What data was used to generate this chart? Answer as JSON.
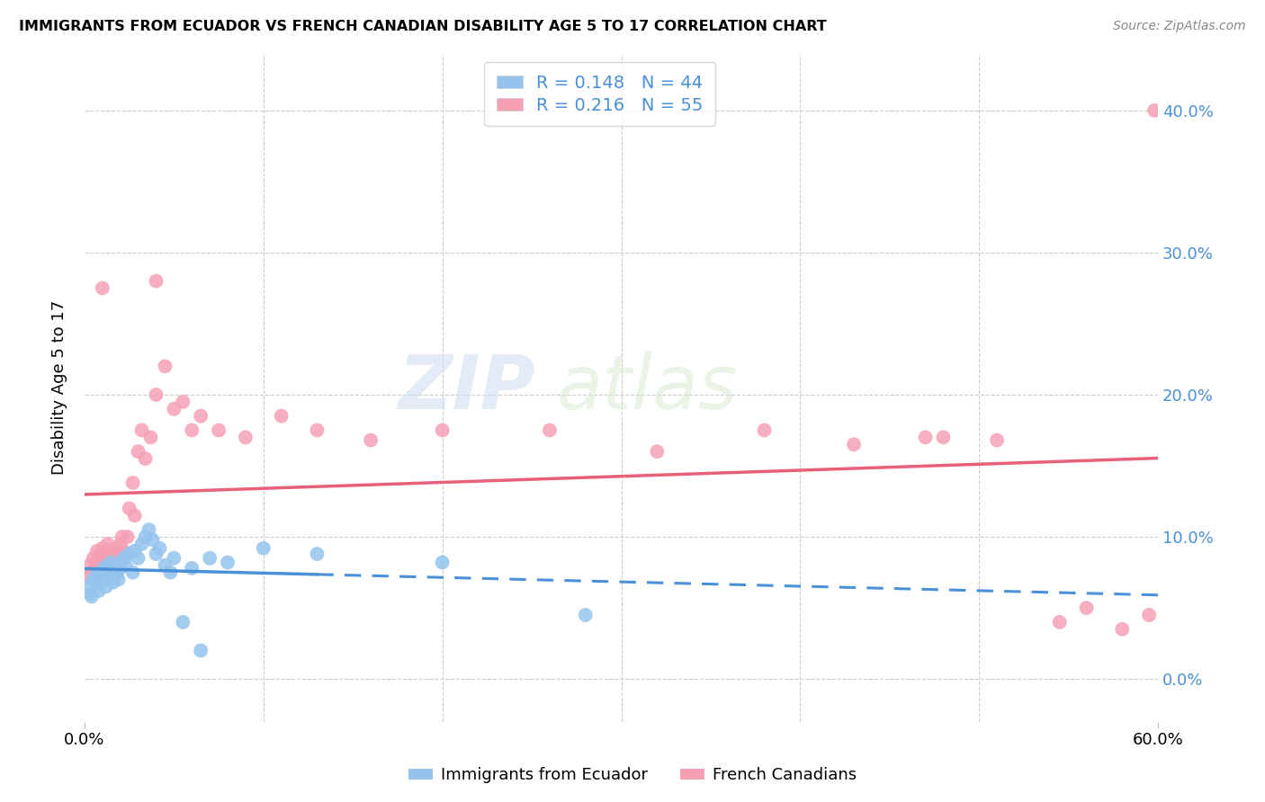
{
  "title": "IMMIGRANTS FROM ECUADOR VS FRENCH CANADIAN DISABILITY AGE 5 TO 17 CORRELATION CHART",
  "source": "Source: ZipAtlas.com",
  "ylabel": "Disability Age 5 to 17",
  "xlim": [
    0.0,
    0.6
  ],
  "ylim": [
    -0.03,
    0.44
  ],
  "yticks": [
    0.0,
    0.1,
    0.2,
    0.3,
    0.4
  ],
  "xtick_positions": [
    0.0,
    0.6
  ],
  "blue_R": 0.148,
  "blue_N": 44,
  "pink_R": 0.216,
  "pink_N": 55,
  "blue_color": "#94C4ED",
  "pink_color": "#F5A0B5",
  "blue_line_color": "#4A90D9",
  "pink_line_color": "#E8607A",
  "watermark_zip": "ZIP",
  "watermark_atlas": "atlas",
  "legend_label1": "Immigrants from Ecuador",
  "legend_label2": "French Canadians",
  "blue_x": [
    0.002,
    0.003,
    0.004,
    0.005,
    0.006,
    0.007,
    0.008,
    0.009,
    0.01,
    0.011,
    0.012,
    0.013,
    0.014,
    0.015,
    0.016,
    0.017,
    0.018,
    0.019,
    0.02,
    0.021,
    0.022,
    0.023,
    0.025,
    0.027,
    0.028,
    0.03,
    0.032,
    0.034,
    0.036,
    0.038,
    0.04,
    0.042,
    0.045,
    0.048,
    0.05,
    0.055,
    0.06,
    0.065,
    0.07,
    0.08,
    0.1,
    0.13,
    0.2,
    0.28
  ],
  "blue_y": [
    0.065,
    0.06,
    0.058,
    0.07,
    0.072,
    0.068,
    0.062,
    0.075,
    0.071,
    0.078,
    0.065,
    0.08,
    0.072,
    0.082,
    0.068,
    0.076,
    0.074,
    0.07,
    0.078,
    0.082,
    0.085,
    0.08,
    0.088,
    0.075,
    0.09,
    0.085,
    0.095,
    0.1,
    0.105,
    0.098,
    0.088,
    0.092,
    0.08,
    0.075,
    0.085,
    0.04,
    0.078,
    0.02,
    0.085,
    0.082,
    0.092,
    0.088,
    0.082,
    0.045
  ],
  "pink_x": [
    0.002,
    0.003,
    0.004,
    0.005,
    0.006,
    0.007,
    0.008,
    0.009,
    0.01,
    0.011,
    0.012,
    0.013,
    0.014,
    0.015,
    0.016,
    0.017,
    0.018,
    0.019,
    0.02,
    0.021,
    0.022,
    0.024,
    0.025,
    0.027,
    0.028,
    0.03,
    0.032,
    0.034,
    0.037,
    0.04,
    0.045,
    0.05,
    0.055,
    0.06,
    0.065,
    0.075,
    0.09,
    0.11,
    0.13,
    0.16,
    0.2,
    0.26,
    0.32,
    0.38,
    0.43,
    0.47,
    0.51,
    0.545,
    0.56,
    0.58,
    0.595,
    0.598,
    0.01,
    0.04,
    0.48
  ],
  "pink_y": [
    0.072,
    0.08,
    0.075,
    0.085,
    0.082,
    0.09,
    0.078,
    0.088,
    0.092,
    0.085,
    0.082,
    0.095,
    0.09,
    0.08,
    0.088,
    0.075,
    0.092,
    0.085,
    0.095,
    0.1,
    0.09,
    0.1,
    0.12,
    0.138,
    0.115,
    0.16,
    0.175,
    0.155,
    0.17,
    0.2,
    0.22,
    0.19,
    0.195,
    0.175,
    0.185,
    0.175,
    0.17,
    0.185,
    0.175,
    0.168,
    0.175,
    0.175,
    0.16,
    0.175,
    0.165,
    0.17,
    0.168,
    0.04,
    0.05,
    0.035,
    0.045,
    0.4,
    0.275,
    0.28,
    0.17
  ]
}
